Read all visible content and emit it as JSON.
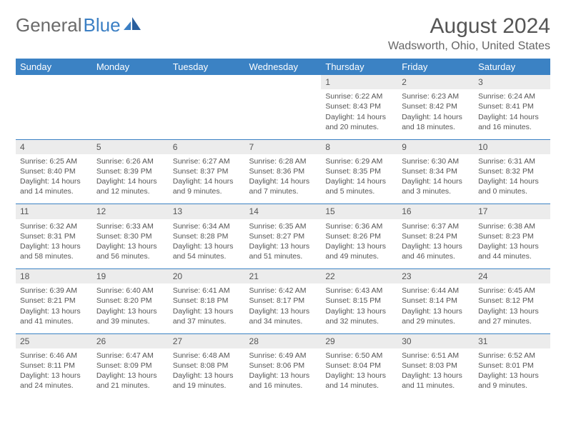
{
  "brand": {
    "part1": "General",
    "part2": "Blue"
  },
  "title": "August 2024",
  "location": "Wadsworth, Ohio, United States",
  "colors": {
    "header_bg": "#3b82c4",
    "header_text": "#ffffff",
    "daynum_bg": "#ececec",
    "row_divider": "#3b82c4",
    "body_text": "#555555",
    "page_bg": "#ffffff"
  },
  "day_headers": [
    "Sunday",
    "Monday",
    "Tuesday",
    "Wednesday",
    "Thursday",
    "Friday",
    "Saturday"
  ],
  "weeks": [
    {
      "nums": [
        "",
        "",
        "",
        "",
        "1",
        "2",
        "3"
      ],
      "cells": [
        {
          "empty": true
        },
        {
          "empty": true
        },
        {
          "empty": true
        },
        {
          "empty": true
        },
        {
          "sunrise": "Sunrise: 6:22 AM",
          "sunset": "Sunset: 8:43 PM",
          "daylight": "Daylight: 14 hours and 20 minutes."
        },
        {
          "sunrise": "Sunrise: 6:23 AM",
          "sunset": "Sunset: 8:42 PM",
          "daylight": "Daylight: 14 hours and 18 minutes."
        },
        {
          "sunrise": "Sunrise: 6:24 AM",
          "sunset": "Sunset: 8:41 PM",
          "daylight": "Daylight: 14 hours and 16 minutes."
        }
      ]
    },
    {
      "nums": [
        "4",
        "5",
        "6",
        "7",
        "8",
        "9",
        "10"
      ],
      "cells": [
        {
          "sunrise": "Sunrise: 6:25 AM",
          "sunset": "Sunset: 8:40 PM",
          "daylight": "Daylight: 14 hours and 14 minutes."
        },
        {
          "sunrise": "Sunrise: 6:26 AM",
          "sunset": "Sunset: 8:39 PM",
          "daylight": "Daylight: 14 hours and 12 minutes."
        },
        {
          "sunrise": "Sunrise: 6:27 AM",
          "sunset": "Sunset: 8:37 PM",
          "daylight": "Daylight: 14 hours and 9 minutes."
        },
        {
          "sunrise": "Sunrise: 6:28 AM",
          "sunset": "Sunset: 8:36 PM",
          "daylight": "Daylight: 14 hours and 7 minutes."
        },
        {
          "sunrise": "Sunrise: 6:29 AM",
          "sunset": "Sunset: 8:35 PM",
          "daylight": "Daylight: 14 hours and 5 minutes."
        },
        {
          "sunrise": "Sunrise: 6:30 AM",
          "sunset": "Sunset: 8:34 PM",
          "daylight": "Daylight: 14 hours and 3 minutes."
        },
        {
          "sunrise": "Sunrise: 6:31 AM",
          "sunset": "Sunset: 8:32 PM",
          "daylight": "Daylight: 14 hours and 0 minutes."
        }
      ]
    },
    {
      "nums": [
        "11",
        "12",
        "13",
        "14",
        "15",
        "16",
        "17"
      ],
      "cells": [
        {
          "sunrise": "Sunrise: 6:32 AM",
          "sunset": "Sunset: 8:31 PM",
          "daylight": "Daylight: 13 hours and 58 minutes."
        },
        {
          "sunrise": "Sunrise: 6:33 AM",
          "sunset": "Sunset: 8:30 PM",
          "daylight": "Daylight: 13 hours and 56 minutes."
        },
        {
          "sunrise": "Sunrise: 6:34 AM",
          "sunset": "Sunset: 8:28 PM",
          "daylight": "Daylight: 13 hours and 54 minutes."
        },
        {
          "sunrise": "Sunrise: 6:35 AM",
          "sunset": "Sunset: 8:27 PM",
          "daylight": "Daylight: 13 hours and 51 minutes."
        },
        {
          "sunrise": "Sunrise: 6:36 AM",
          "sunset": "Sunset: 8:26 PM",
          "daylight": "Daylight: 13 hours and 49 minutes."
        },
        {
          "sunrise": "Sunrise: 6:37 AM",
          "sunset": "Sunset: 8:24 PM",
          "daylight": "Daylight: 13 hours and 46 minutes."
        },
        {
          "sunrise": "Sunrise: 6:38 AM",
          "sunset": "Sunset: 8:23 PM",
          "daylight": "Daylight: 13 hours and 44 minutes."
        }
      ]
    },
    {
      "nums": [
        "18",
        "19",
        "20",
        "21",
        "22",
        "23",
        "24"
      ],
      "cells": [
        {
          "sunrise": "Sunrise: 6:39 AM",
          "sunset": "Sunset: 8:21 PM",
          "daylight": "Daylight: 13 hours and 41 minutes."
        },
        {
          "sunrise": "Sunrise: 6:40 AM",
          "sunset": "Sunset: 8:20 PM",
          "daylight": "Daylight: 13 hours and 39 minutes."
        },
        {
          "sunrise": "Sunrise: 6:41 AM",
          "sunset": "Sunset: 8:18 PM",
          "daylight": "Daylight: 13 hours and 37 minutes."
        },
        {
          "sunrise": "Sunrise: 6:42 AM",
          "sunset": "Sunset: 8:17 PM",
          "daylight": "Daylight: 13 hours and 34 minutes."
        },
        {
          "sunrise": "Sunrise: 6:43 AM",
          "sunset": "Sunset: 8:15 PM",
          "daylight": "Daylight: 13 hours and 32 minutes."
        },
        {
          "sunrise": "Sunrise: 6:44 AM",
          "sunset": "Sunset: 8:14 PM",
          "daylight": "Daylight: 13 hours and 29 minutes."
        },
        {
          "sunrise": "Sunrise: 6:45 AM",
          "sunset": "Sunset: 8:12 PM",
          "daylight": "Daylight: 13 hours and 27 minutes."
        }
      ]
    },
    {
      "nums": [
        "25",
        "26",
        "27",
        "28",
        "29",
        "30",
        "31"
      ],
      "cells": [
        {
          "sunrise": "Sunrise: 6:46 AM",
          "sunset": "Sunset: 8:11 PM",
          "daylight": "Daylight: 13 hours and 24 minutes."
        },
        {
          "sunrise": "Sunrise: 6:47 AM",
          "sunset": "Sunset: 8:09 PM",
          "daylight": "Daylight: 13 hours and 21 minutes."
        },
        {
          "sunrise": "Sunrise: 6:48 AM",
          "sunset": "Sunset: 8:08 PM",
          "daylight": "Daylight: 13 hours and 19 minutes."
        },
        {
          "sunrise": "Sunrise: 6:49 AM",
          "sunset": "Sunset: 8:06 PM",
          "daylight": "Daylight: 13 hours and 16 minutes."
        },
        {
          "sunrise": "Sunrise: 6:50 AM",
          "sunset": "Sunset: 8:04 PM",
          "daylight": "Daylight: 13 hours and 14 minutes."
        },
        {
          "sunrise": "Sunrise: 6:51 AM",
          "sunset": "Sunset: 8:03 PM",
          "daylight": "Daylight: 13 hours and 11 minutes."
        },
        {
          "sunrise": "Sunrise: 6:52 AM",
          "sunset": "Sunset: 8:01 PM",
          "daylight": "Daylight: 13 hours and 9 minutes."
        }
      ]
    }
  ]
}
